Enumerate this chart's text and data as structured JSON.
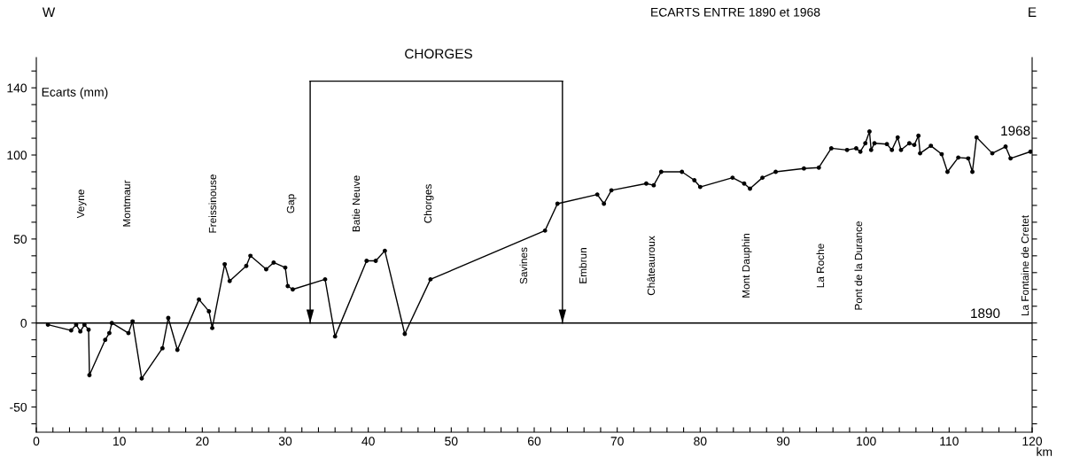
{
  "chart_data": {
    "type": "line",
    "title": "ECARTS ENTRE 1890 et 1968",
    "xlabel": "km",
    "ylabel": "Ecarts (mm)",
    "xlim": [
      0,
      120
    ],
    "ylim": [
      -65,
      158
    ],
    "xticks": [
      0,
      {
        "value": 2,
        "label": null
      },
      {
        "value": 4,
        "label": null
      },
      {
        "value": 6,
        "label": null
      },
      {
        "value": 8,
        "label": null
      },
      10,
      {
        "value": 12,
        "label": null
      },
      {
        "value": 14,
        "label": null
      },
      {
        "value": 16,
        "label": null
      },
      {
        "value": 18,
        "label": null
      },
      20,
      {
        "value": 22,
        "label": null
      },
      {
        "value": 24,
        "label": null
      },
      {
        "value": 26,
        "label": null
      },
      {
        "value": 28,
        "label": null
      },
      30,
      {
        "value": 32,
        "label": null
      },
      {
        "value": 34,
        "label": null
      },
      {
        "value": 36,
        "label": null
      },
      {
        "value": 38,
        "label": null
      },
      40,
      {
        "value": 42,
        "label": null
      },
      {
        "value": 44,
        "label": null
      },
      {
        "value": 46,
        "label": null
      },
      {
        "value": 48,
        "label": null
      },
      50,
      {
        "value": 52,
        "label": null
      },
      {
        "value": 54,
        "label": null
      },
      {
        "value": 56,
        "label": null
      },
      {
        "value": 58,
        "label": null
      },
      60,
      {
        "value": 62,
        "label": null
      },
      {
        "value": 64,
        "label": null
      },
      {
        "value": 66,
        "label": null
      },
      {
        "value": 68,
        "label": null
      },
      70,
      {
        "value": 72,
        "label": null
      },
      {
        "value": 74,
        "label": null
      },
      {
        "value": 76,
        "label": null
      },
      {
        "value": 78,
        "label": null
      },
      80,
      {
        "value": 82,
        "label": null
      },
      {
        "value": 84,
        "label": null
      },
      {
        "value": 86,
        "label": null
      },
      {
        "value": 88,
        "label": null
      },
      90,
      {
        "value": 92,
        "label": null
      },
      {
        "value": 94,
        "label": null
      },
      {
        "value": 96,
        "label": null
      },
      {
        "value": 98,
        "label": null
      },
      100,
      {
        "value": 102,
        "label": null
      },
      {
        "value": 104,
        "label": null
      },
      {
        "value": 106,
        "label": null
      },
      {
        "value": 108,
        "label": null
      },
      110,
      {
        "value": 112,
        "label": null
      },
      {
        "value": 114,
        "label": null
      },
      {
        "value": 116,
        "label": null
      },
      {
        "value": 118,
        "label": null
      },
      120
    ],
    "yticks": [
      {
        "value": -60,
        "label": null
      },
      -50,
      {
        "value": -40,
        "label": null
      },
      {
        "value": -30,
        "label": null
      },
      {
        "value": -20,
        "label": null
      },
      {
        "value": -10,
        "label": null
      },
      0,
      {
        "value": 10,
        "label": null
      },
      {
        "value": 20,
        "label": null
      },
      {
        "value": 30,
        "label": null
      },
      {
        "value": 40,
        "label": null
      },
      50,
      {
        "value": 60,
        "label": null
      },
      {
        "value": 70,
        "label": null
      },
      {
        "value": 80,
        "label": null
      },
      {
        "value": 90,
        "label": null
      },
      100,
      {
        "value": 110,
        "label": null
      },
      {
        "value": 120,
        "label": null
      },
      {
        "value": 130,
        "label": null
      },
      140,
      {
        "value": 150,
        "label": null
      }
    ],
    "marker": "circle",
    "line_style": "solid",
    "grid": false,
    "series": [
      {
        "name": "1968",
        "color": "#000000",
        "x": [
          1.4,
          4.2,
          4.8,
          5.3,
          5.8,
          6.3,
          6.4,
          8.3,
          8.8,
          9.1,
          11.1,
          11.6,
          12.7,
          15.2,
          15.9,
          17.0,
          19.6,
          20.8,
          21.2,
          22.7,
          23.3,
          25.3,
          25.8,
          27.7,
          28.6,
          30.0,
          30.3,
          30.9,
          34.8,
          36.0,
          39.8,
          40.9,
          42.0,
          44.4,
          47.5,
          61.3,
          62.8,
          67.6,
          68.4,
          69.3,
          73.5,
          74.4,
          75.3,
          77.8,
          79.3,
          80.0,
          83.9,
          85.3,
          86.0,
          87.5,
          89.1,
          92.5,
          94.3,
          95.8,
          97.7,
          98.8,
          99.3,
          99.9,
          100.4,
          100.6,
          101.0,
          102.5,
          103.1,
          103.8,
          104.2,
          105.2,
          105.8,
          106.3,
          106.5,
          107.8,
          109.1,
          109.8,
          111.1,
          112.3,
          112.8,
          113.3,
          115.2,
          116.8,
          117.4,
          119.8
        ],
        "values": [
          -1,
          -4.4,
          -1,
          -5,
          -1,
          -4,
          -31,
          -10,
          -6,
          0,
          -6,
          1,
          -33,
          -15,
          3,
          -16,
          14,
          7,
          -3,
          35,
          25,
          34,
          40,
          32,
          36,
          33,
          22,
          20,
          26,
          -8,
          37,
          37,
          43,
          -6.5,
          26,
          55,
          71,
          76.5,
          71,
          79,
          83,
          82,
          90,
          90,
          85,
          81,
          86.5,
          83,
          80,
          86.5,
          90,
          92,
          92.5,
          104,
          103,
          104,
          102,
          107,
          114,
          103,
          107,
          106.5,
          103,
          110.5,
          103,
          107,
          106,
          111.5,
          101,
          105.5,
          100.5,
          90,
          98.5,
          98,
          90,
          110.5,
          101,
          105,
          98,
          102
        ]
      }
    ],
    "ref_lines": [
      {
        "axis": "y",
        "value": 0,
        "color": "#000000"
      },
      {
        "axis": "x",
        "value": 33,
        "color": "#000000"
      },
      {
        "axis": "x",
        "value": 63.4,
        "color": "#000000"
      }
    ],
    "annotations": [
      "W",
      "E",
      "1890",
      "CHORGES",
      "Veyne",
      "Montmaur",
      "Freissinouse",
      "Gap",
      "Batie Neuve",
      "Chorges",
      "Savines",
      "Embrun",
      "Châteauroux",
      "Mont Dauphin",
      "La Roche",
      "Pont de la Durance",
      "La Fontaine de Cretet"
    ]
  }
}
